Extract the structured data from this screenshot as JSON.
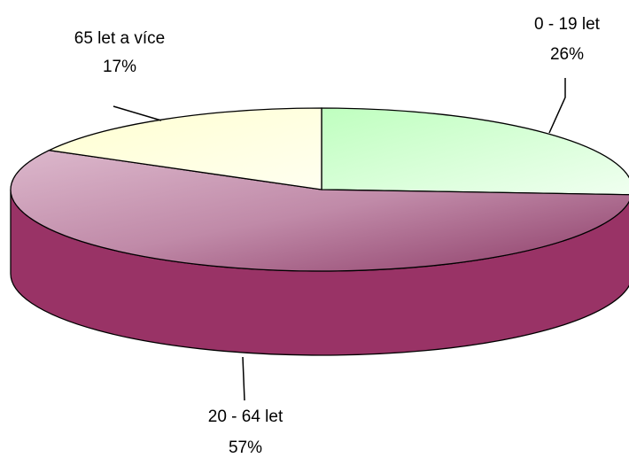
{
  "chart_data": {
    "type": "pie3d",
    "categories": [
      "0 - 19 let",
      "20 - 64 let",
      "65 let a více"
    ],
    "values": [
      26,
      57,
      17
    ],
    "value_labels": [
      "26%",
      "57%",
      "17%"
    ],
    "colors": [
      "#ccffcc",
      "#993366",
      "#ffffcc"
    ]
  }
}
